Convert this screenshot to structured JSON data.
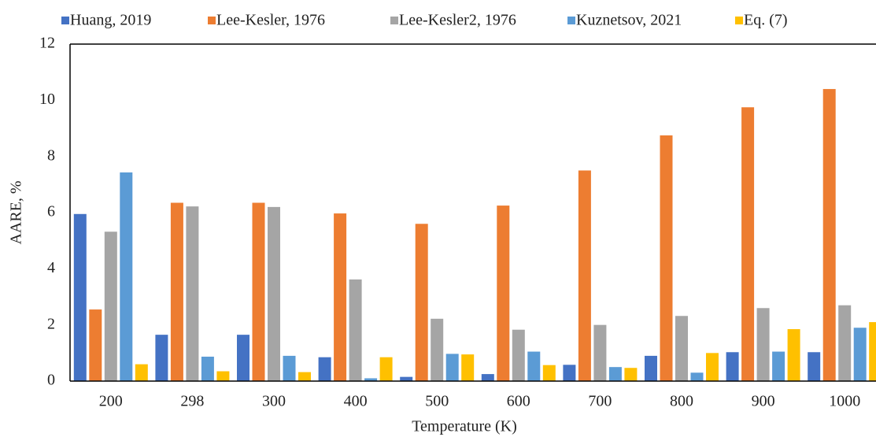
{
  "chart_data": {
    "type": "bar",
    "x_label": "Temperature (K)",
    "y_label": "AARE, %",
    "categories": [
      "200",
      "298",
      "300",
      "400",
      "500",
      "600",
      "700",
      "800",
      "900",
      "1000"
    ],
    "series": [
      {
        "name": "Huang, 2019",
        "color": "#4472c4",
        "values": [
          5.95,
          1.65,
          1.65,
          0.85,
          0.15,
          0.25,
          0.58,
          0.9,
          1.03,
          1.03
        ]
      },
      {
        "name": "Lee-Kesler, 1976",
        "color": "#ed7d31",
        "values": [
          2.55,
          6.35,
          6.35,
          5.97,
          5.6,
          6.25,
          7.5,
          8.75,
          9.75,
          10.4
        ]
      },
      {
        "name": "Lee-Kesler2, 1976",
        "color": "#a5a5a5",
        "values": [
          5.32,
          6.22,
          6.2,
          3.62,
          2.22,
          1.83,
          2.0,
          2.32,
          2.6,
          2.7
        ]
      },
      {
        "name": "Kuznetsov, 2021",
        "color": "#5b9bd5",
        "values": [
          7.43,
          0.87,
          0.9,
          0.1,
          0.97,
          1.05,
          0.5,
          0.3,
          1.05,
          1.9
        ]
      },
      {
        "name": "Eq. (7)",
        "color": "#ffc000",
        "values": [
          0.6,
          0.35,
          0.32,
          0.85,
          0.95,
          0.57,
          0.47,
          1.0,
          1.85,
          2.1
        ]
      }
    ],
    "ylim": [
      0,
      12
    ],
    "yticks": [
      0,
      2,
      4,
      6,
      8,
      10,
      12
    ],
    "grid": false,
    "legend": "top"
  }
}
